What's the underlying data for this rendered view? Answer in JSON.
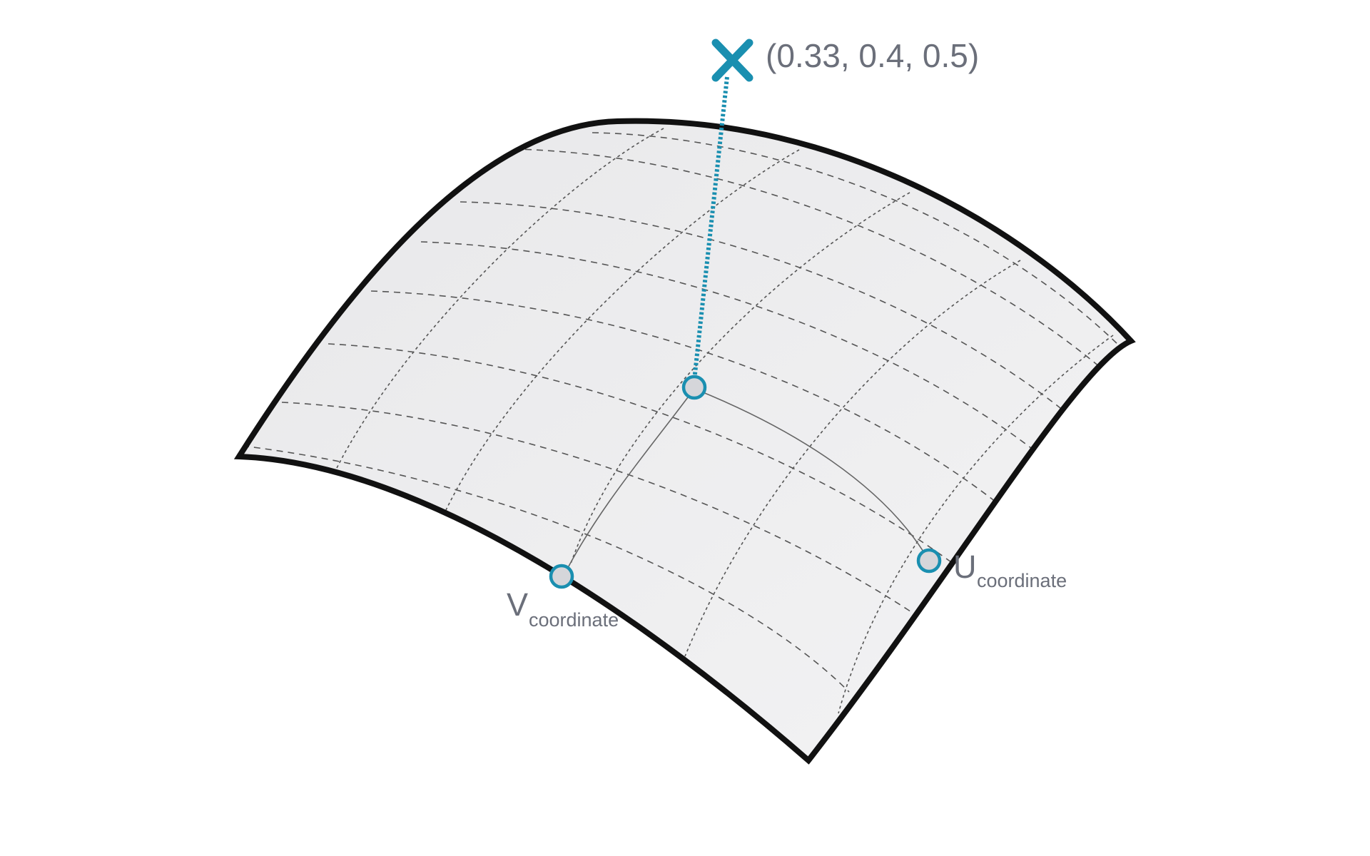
{
  "point": {
    "coordinates_label": "(0.33, 0.4, 0.5)",
    "marker_icon": "x-mark-icon"
  },
  "u_label": {
    "main": "U",
    "sub": "coordinate"
  },
  "v_label": {
    "main": "V",
    "sub": "coordinate"
  },
  "colors": {
    "accent": "#1a8fb0",
    "outline": "#111111",
    "surface_fill": "#efeff1",
    "grid_line": "#555555",
    "dot_fill": "#d5d6da",
    "label_text": "#6b6f7a"
  }
}
